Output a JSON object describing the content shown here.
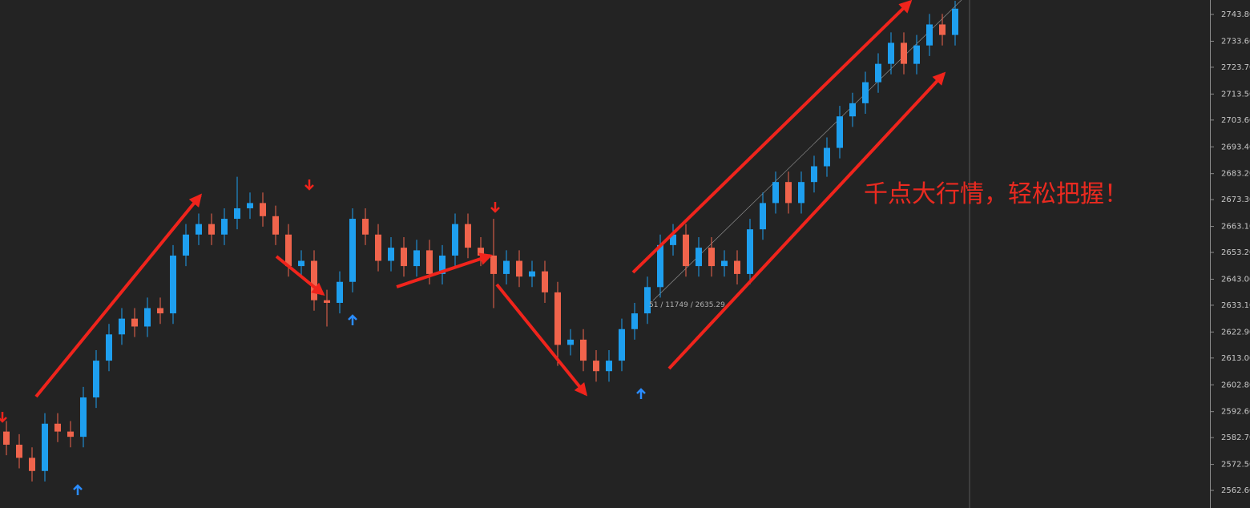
{
  "chart_data": {
    "type": "candlestick",
    "annotations": [
      "千点大行情，轻松把握！",
      "51 / 11749 / 2635.29"
    ],
    "up_color": "#1e9fef",
    "down_color": "#f0644c",
    "ylim": [
      2555.9,
      2749.3
    ],
    "yticks": [
      {
        "value": 2743.8,
        "label": "2743.80"
      },
      {
        "value": 2733.6,
        "label": "2733.60"
      },
      {
        "value": 2723.7,
        "label": "2723.70"
      },
      {
        "value": 2713.5,
        "label": "2713.50"
      },
      {
        "value": 2703.6,
        "label": "2703.60"
      },
      {
        "value": 2693.4,
        "label": "2693.40"
      },
      {
        "value": 2683.2,
        "label": "2683.20"
      },
      {
        "value": 2673.3,
        "label": "2673.30"
      },
      {
        "value": 2663.1,
        "label": "2663.10"
      },
      {
        "value": 2653.2,
        "label": "2653.20"
      },
      {
        "value": 2643.0,
        "label": "2643.00"
      },
      {
        "value": 2633.1,
        "label": "2633.10"
      },
      {
        "value": 2622.9,
        "label": "2622.90"
      },
      {
        "value": 2613.0,
        "label": "2613.00"
      },
      {
        "value": 2602.8,
        "label": "2602.80"
      },
      {
        "value": 2592.6,
        "label": "2592.60"
      },
      {
        "value": 2582.7,
        "label": "2582.70"
      },
      {
        "value": 2572.5,
        "label": "2572.50"
      },
      {
        "value": 2562.6,
        "label": "2562.60"
      }
    ],
    "open": [
      2585,
      2580,
      2575,
      2570,
      2588,
      2585,
      2583,
      2598,
      2612,
      2622,
      2628,
      2625,
      2632,
      2630,
      2652,
      2660,
      2664,
      2660,
      2666,
      2670,
      2672,
      2667,
      2660,
      2648,
      2650,
      2635,
      2634,
      2642,
      2666,
      2660,
      2650,
      2655,
      2648,
      2654,
      2645,
      2652,
      2664,
      2655,
      2652,
      2645,
      2650,
      2644,
      2646,
      2638,
      2618,
      2620,
      2612,
      2608,
      2612,
      2624,
      2630,
      2640,
      2656,
      2660,
      2648,
      2655,
      2648,
      2650,
      2645,
      2662,
      2672,
      2680,
      2672,
      2680,
      2686,
      2693,
      2705,
      2710,
      2718,
      2725,
      2733,
      2725,
      2732,
      2740,
      2736
    ],
    "high": [
      2589,
      2584,
      2579,
      2592,
      2592,
      2589,
      2602,
      2616,
      2626,
      2632,
      2632,
      2636,
      2636,
      2656,
      2664,
      2668,
      2668,
      2670,
      2682,
      2676,
      2676,
      2671,
      2664,
      2654,
      2654,
      2639,
      2646,
      2670,
      2670,
      2664,
      2659,
      2659,
      2658,
      2658,
      2656,
      2668,
      2668,
      2659,
      2666,
      2654,
      2654,
      2650,
      2650,
      2642,
      2624,
      2624,
      2616,
      2616,
      2628,
      2634,
      2644,
      2660,
      2664,
      2664,
      2659,
      2659,
      2654,
      2654,
      2666,
      2676,
      2684,
      2684,
      2684,
      2690,
      2697,
      2709,
      2714,
      2722,
      2729,
      2737,
      2737,
      2736,
      2744,
      2744,
      2749
    ],
    "low": [
      2576,
      2571,
      2566,
      2566,
      2581,
      2579,
      2579,
      2594,
      2608,
      2618,
      2621,
      2621,
      2626,
      2626,
      2648,
      2656,
      2656,
      2656,
      2662,
      2666,
      2663,
      2656,
      2644,
      2644,
      2631,
      2625,
      2630,
      2638,
      2656,
      2646,
      2646,
      2644,
      2644,
      2641,
      2641,
      2648,
      2651,
      2648,
      2632,
      2641,
      2640,
      2640,
      2634,
      2610,
      2614,
      2608,
      2604,
      2604,
      2608,
      2620,
      2626,
      2636,
      2652,
      2644,
      2644,
      2644,
      2644,
      2641,
      2641,
      2658,
      2668,
      2668,
      2668,
      2676,
      2682,
      2689,
      2701,
      2706,
      2714,
      2721,
      2721,
      2721,
      2728,
      2732,
      2732
    ],
    "close": [
      2580,
      2575,
      2570,
      2588,
      2585,
      2583,
      2598,
      2612,
      2622,
      2628,
      2625,
      2632,
      2630,
      2652,
      2660,
      2664,
      2660,
      2666,
      2670,
      2672,
      2667,
      2660,
      2648,
      2650,
      2635,
      2634,
      2642,
      2666,
      2660,
      2650,
      2655,
      2648,
      2654,
      2645,
      2652,
      2664,
      2655,
      2652,
      2645,
      2650,
      2644,
      2646,
      2638,
      2618,
      2620,
      2612,
      2608,
      2612,
      2624,
      2630,
      2640,
      2656,
      2660,
      2648,
      2655,
      2648,
      2650,
      2645,
      2662,
      2672,
      2680,
      2672,
      2680,
      2686,
      2693,
      2705,
      2710,
      2718,
      2725,
      2733,
      2725,
      2732,
      2740,
      2736,
      2746
    ]
  }
}
